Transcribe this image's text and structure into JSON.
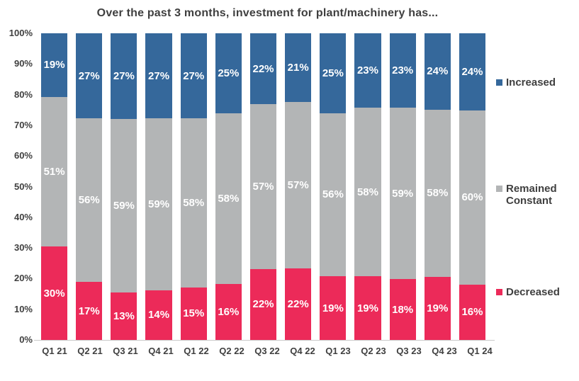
{
  "title": "Over the past 3 months, investment for plant/machinery has...",
  "colors": {
    "increased": "#35689b",
    "remained_constant": "#b3b5b6",
    "decreased": "#ec2a59",
    "axis_text": "#3f3f3f",
    "axis_line": "#c9c9c9",
    "segment_label_text": "#ffffff"
  },
  "legend": [
    {
      "name": "Increased",
      "color": "#35689b"
    },
    {
      "name": "Remained Constant",
      "color": "#b3b5b6"
    },
    {
      "name": "Decreased",
      "color": "#ec2a59"
    }
  ],
  "y_axis": {
    "ticks": [
      "100%",
      "90%",
      "80%",
      "70%",
      "60%",
      "50%",
      "40%",
      "30%",
      "20%",
      "10%",
      "0%"
    ]
  },
  "chart_data": {
    "type": "bar",
    "stacked": true,
    "title": "Over the past 3 months, investment for plant/machinery has...",
    "categories": [
      "Q1 21",
      "Q2 21",
      "Q3 21",
      "Q4 21",
      "Q1 22",
      "Q2 22",
      "Q3 22",
      "Q4 22",
      "Q1 23",
      "Q2 23",
      "Q3 23",
      "Q4 23",
      "Q1 24"
    ],
    "series": [
      {
        "name": "Decreased",
        "color": "#ec2a59",
        "values": [
          30,
          17,
          13,
          14,
          15,
          16,
          22,
          22,
          19,
          19,
          18,
          19,
          16
        ]
      },
      {
        "name": "Remained Constant",
        "color": "#b3b5b6",
        "values": [
          51,
          56,
          59,
          59,
          58,
          58,
          57,
          57,
          56,
          58,
          59,
          58,
          60
        ]
      },
      {
        "name": "Increased",
        "color": "#35689b",
        "values": [
          19,
          27,
          27,
          27,
          27,
          25,
          22,
          21,
          25,
          23,
          23,
          24,
          24
        ]
      }
    ],
    "xlabel": "",
    "ylabel": "",
    "ylim": [
      0,
      100
    ],
    "value_suffix": "%",
    "grid": false,
    "legend_position": "right"
  }
}
